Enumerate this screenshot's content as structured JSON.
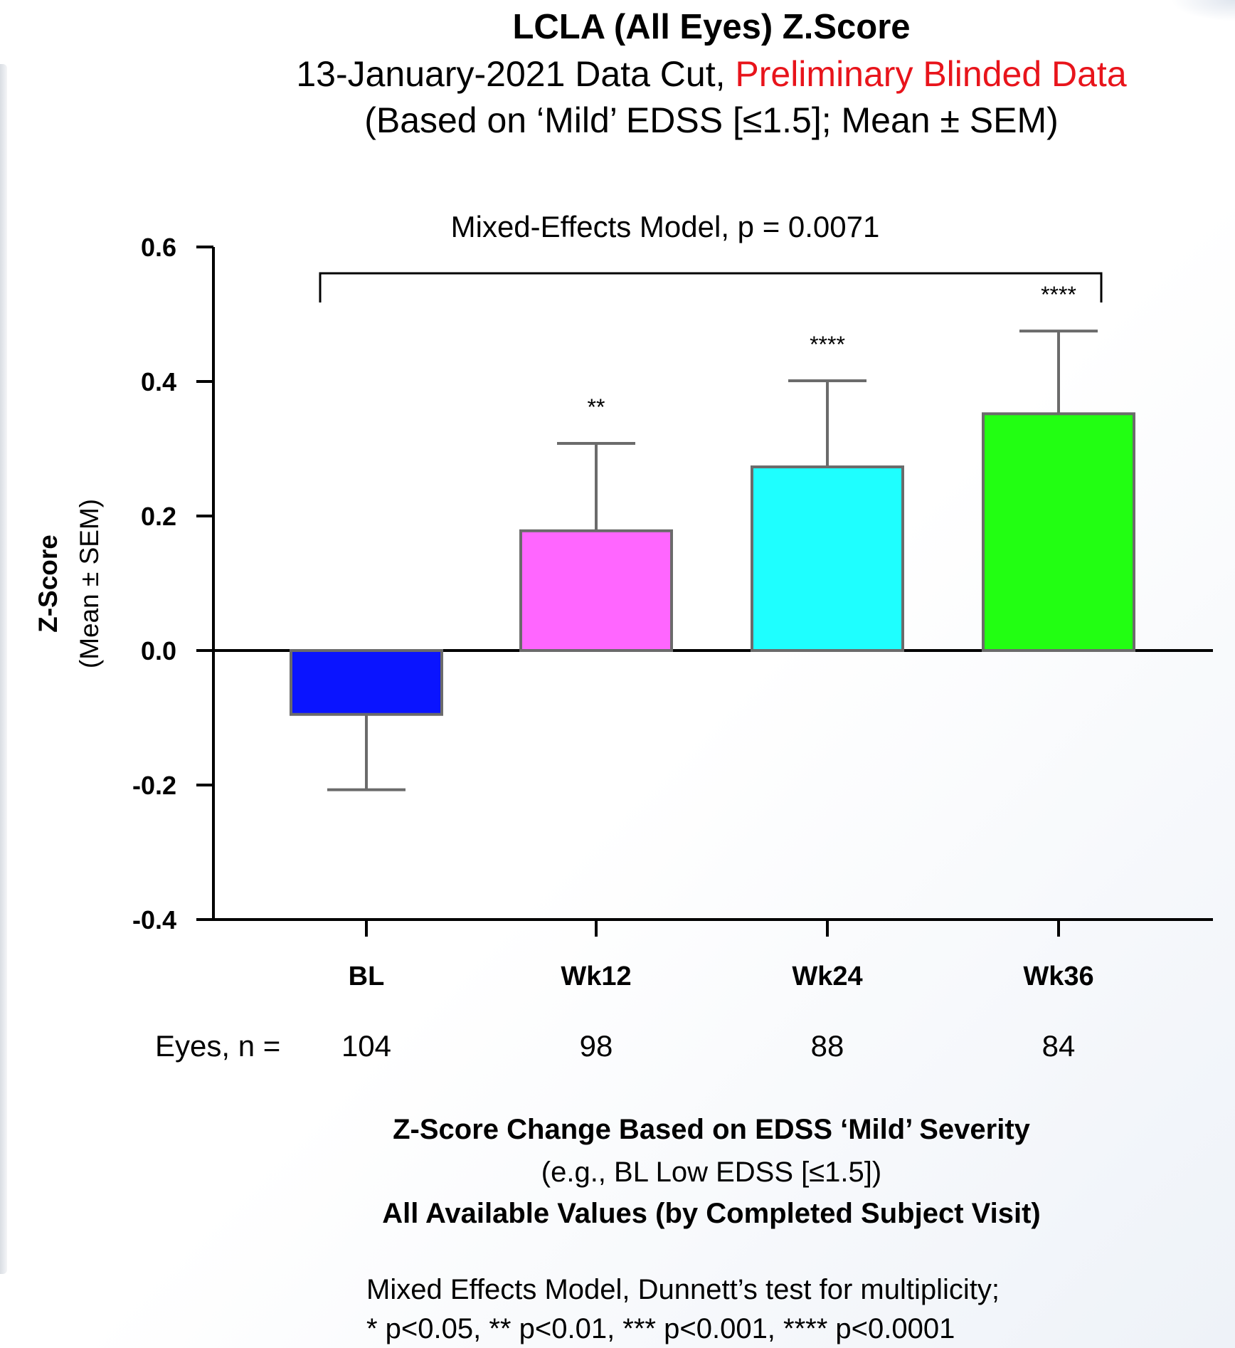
{
  "header": {
    "title": "LCLA (All Eyes) Z.Score",
    "subtitle_black": "13-January-2021 Data Cut, ",
    "subtitle_red": "Preliminary Blinded Data",
    "subtitle2": "(Based on ‘Mild’ EDSS [≤1.5]; Mean ± SEM)"
  },
  "chart_data": {
    "type": "bar",
    "categories": [
      "BL",
      "Wk12",
      "Wk24",
      "Wk36"
    ],
    "values": [
      -0.095,
      0.178,
      0.273,
      0.352
    ],
    "errors": [
      0.112,
      0.13,
      0.128,
      0.123
    ],
    "colors": [
      "#0a14ff",
      "#ff66ff",
      "#1effff",
      "#22ff12"
    ],
    "significance": [
      "",
      "**",
      "****",
      "****"
    ],
    "ylabel_bold": "Z-Score",
    "ylabel_regular": "(Mean ± SEM)",
    "ylim": [
      -0.4,
      0.6
    ],
    "yticks": [
      "0.6",
      "0.4",
      "0.2",
      "0.0",
      "-0.2",
      "-0.4"
    ],
    "ytick_values": [
      0.6,
      0.4,
      0.2,
      0.0,
      -0.2,
      -0.4
    ],
    "model_annotation": "Mixed-Effects Model, p =   0.0071",
    "n_label": "Eyes, n =",
    "n_values": [
      "104",
      "98",
      "88",
      "84"
    ]
  },
  "footer": {
    "line1": "Z-Score Change Based on EDSS ‘Mild’ Severity",
    "line2": "(e.g., BL Low EDSS [≤1.5])",
    "line3": "All Available Values (by Completed Subject Visit)",
    "note1": "Mixed Effects Model, Dunnett’s test for multiplicity;",
    "note2": "* p<0.05, ** p<0.01, *** p<0.001, **** p<0.0001"
  }
}
